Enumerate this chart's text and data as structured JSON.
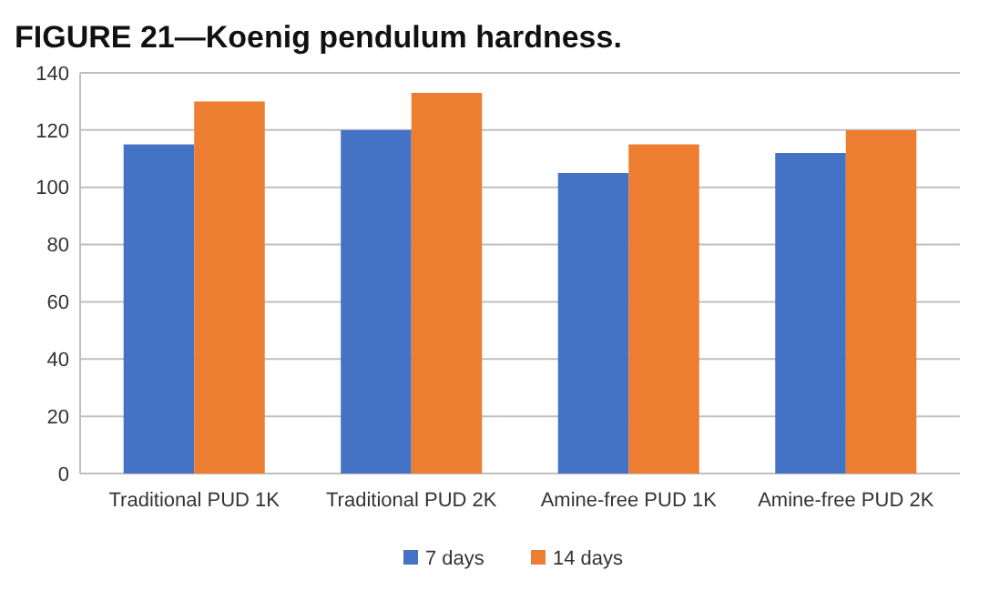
{
  "chart_data": {
    "type": "bar",
    "title": "FIGURE 21—Koenig pendulum hardness.",
    "categories": [
      "Traditional PUD 1K",
      "Traditional PUD 2K",
      "Amine-free PUD 1K",
      "Amine-free PUD 2K"
    ],
    "series": [
      {
        "name": "7 days",
        "color": "#4472c4",
        "values": [
          115,
          120,
          105,
          112
        ]
      },
      {
        "name": "14 days",
        "color": "#ed7d31",
        "values": [
          130,
          133,
          115,
          120
        ]
      }
    ],
    "ylim": [
      0,
      140
    ],
    "yticks": [
      0,
      20,
      40,
      60,
      80,
      100,
      120,
      140
    ],
    "grid": "y",
    "legend": "bottom"
  }
}
